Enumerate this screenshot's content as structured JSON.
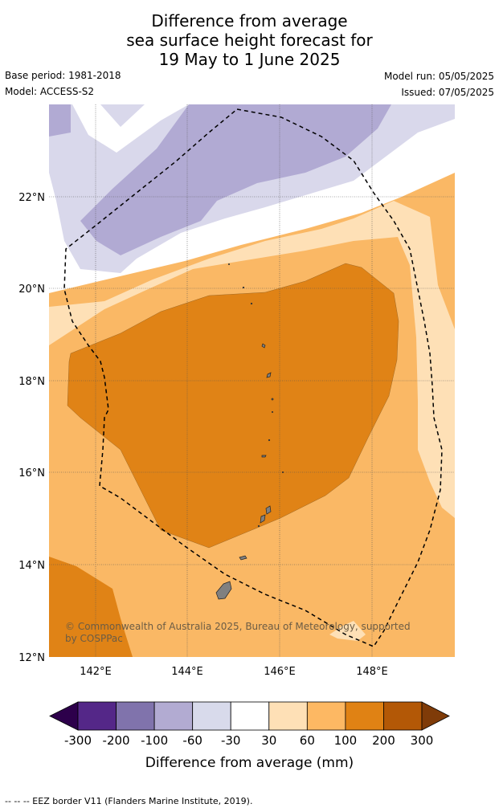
{
  "title": {
    "line1": "Difference from average",
    "line2": "sea surface height forecast for",
    "line3": "19 May to 1 June 2025"
  },
  "meta": {
    "base_period": "Base period: 1981-2018",
    "model": "Model: ACCESS-S2",
    "model_run": "Model run: 05/05/2025",
    "issued": "Issued: 07/05/2025"
  },
  "map": {
    "latitude_labels": [
      "22°N",
      "20°N",
      "18°N",
      "16°N",
      "14°N",
      "12°N"
    ],
    "longitude_labels": [
      "142°E",
      "144°E",
      "146°E",
      "148°E"
    ],
    "copyright_line1": "© Commonwealth of Australia 2025, Bureau of Meteorology, supported",
    "copyright_line2": "by COSPPac"
  },
  "colorbar": {
    "tick_labels": [
      "-300",
      "-200",
      "-100",
      "-60",
      "-30",
      "30",
      "60",
      "100",
      "200",
      "300"
    ],
    "colors": [
      "#2d004b",
      "#542788",
      "#8073ac",
      "#b2abd2",
      "#d8daeb",
      "#ffffff",
      "#fee0b6",
      "#fdb863",
      "#e08214",
      "#b35806",
      "#7f3b08"
    ],
    "label": "Difference from average (mm)"
  },
  "footnote": "--  --  -- EEZ border V11 (Flanders Marine Institute, 2019)."
}
